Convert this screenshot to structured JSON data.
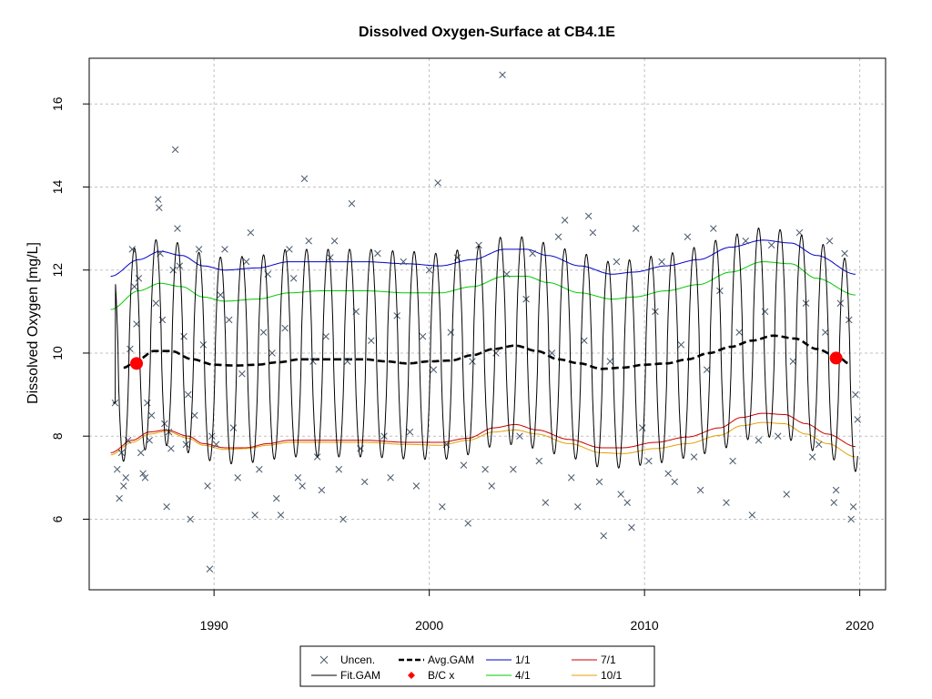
{
  "chart_data": {
    "type": "scatter",
    "title": "Dissolved Oxygen-Surface at CB4.1E",
    "xlabel": "",
    "ylabel": "Dissolved Oxygen [mg/L]",
    "xlim": [
      1984.2,
      2021.2
    ],
    "ylim": [
      4.3,
      17.1
    ],
    "xticks": [
      1990,
      2000,
      2010,
      2020
    ],
    "yticks": [
      6,
      8,
      10,
      12,
      14,
      16
    ],
    "grid": true,
    "legend_position": "bottom",
    "colors": {
      "points": "#4a5a6e",
      "fit_gam": "#000000",
      "avg_gam": "#000000",
      "bc": "#ff0000",
      "q1_1": "#0000cc",
      "q4_1": "#00cc00",
      "q7_1": "#cc0000",
      "q10_1": "#e69f00",
      "grid": "#c0c0c0"
    },
    "legend": [
      {
        "key": "uncen",
        "label": "Uncen."
      },
      {
        "key": "avg",
        "label": "Avg.GAM"
      },
      {
        "key": "q1",
        "label": "1/1"
      },
      {
        "key": "q7",
        "label": "7/1"
      },
      {
        "key": "fit",
        "label": "Fit.GAM"
      },
      {
        "key": "bc",
        "label": "B/C x"
      },
      {
        "key": "q4",
        "label": "4/1"
      },
      {
        "key": "q10",
        "label": "10/1"
      }
    ],
    "series": [
      {
        "key": "q1",
        "points": [
          [
            1985.2,
            11.85
          ],
          [
            1986.5,
            12.25
          ],
          [
            1987.5,
            12.45
          ],
          [
            1988.5,
            12.35
          ],
          [
            1989.5,
            12.1
          ],
          [
            1990.5,
            12.0
          ],
          [
            1992,
            12.05
          ],
          [
            1993.5,
            12.2
          ],
          [
            1995,
            12.2
          ],
          [
            1997,
            12.2
          ],
          [
            1999,
            12.15
          ],
          [
            2000.5,
            12.1
          ],
          [
            2002,
            12.25
          ],
          [
            2003.5,
            12.5
          ],
          [
            2004.5,
            12.5
          ],
          [
            2005.5,
            12.35
          ],
          [
            2007,
            12.1
          ],
          [
            2008.5,
            11.9
          ],
          [
            2009.5,
            11.95
          ],
          [
            2011,
            12.1
          ],
          [
            2012.5,
            12.25
          ],
          [
            2014,
            12.55
          ],
          [
            2015.5,
            12.72
          ],
          [
            2016.8,
            12.65
          ],
          [
            2018,
            12.35
          ],
          [
            2019.8,
            11.9
          ]
        ]
      },
      {
        "key": "q4",
        "points": [
          [
            1985.2,
            11.05
          ],
          [
            1986.5,
            11.5
          ],
          [
            1987.5,
            11.68
          ],
          [
            1988.5,
            11.6
          ],
          [
            1989.5,
            11.35
          ],
          [
            1990.5,
            11.25
          ],
          [
            1992,
            11.3
          ],
          [
            1993.5,
            11.45
          ],
          [
            1995,
            11.5
          ],
          [
            1997,
            11.5
          ],
          [
            1999,
            11.45
          ],
          [
            2000.5,
            11.45
          ],
          [
            2002,
            11.6
          ],
          [
            2003.5,
            11.85
          ],
          [
            2004.5,
            11.85
          ],
          [
            2005.5,
            11.7
          ],
          [
            2007,
            11.45
          ],
          [
            2008.5,
            11.3
          ],
          [
            2009.5,
            11.35
          ],
          [
            2011,
            11.5
          ],
          [
            2012.5,
            11.65
          ],
          [
            2014,
            11.95
          ],
          [
            2015.5,
            12.2
          ],
          [
            2016.8,
            12.15
          ],
          [
            2018,
            11.8
          ],
          [
            2019.8,
            11.4
          ]
        ]
      },
      {
        "key": "q7",
        "points": [
          [
            1985.2,
            7.6
          ],
          [
            1986.2,
            7.9
          ],
          [
            1987,
            8.1
          ],
          [
            1987.8,
            8.15
          ],
          [
            1988.8,
            8.0
          ],
          [
            1989.5,
            7.82
          ],
          [
            1990.5,
            7.72
          ],
          [
            1991.5,
            7.72
          ],
          [
            1992.5,
            7.82
          ],
          [
            1993.5,
            7.9
          ],
          [
            1995,
            7.9
          ],
          [
            1997,
            7.9
          ],
          [
            1999,
            7.85
          ],
          [
            2000.5,
            7.85
          ],
          [
            2001.8,
            7.95
          ],
          [
            2003,
            8.2
          ],
          [
            2004,
            8.28
          ],
          [
            2005,
            8.15
          ],
          [
            2006.5,
            7.92
          ],
          [
            2008,
            7.72
          ],
          [
            2009,
            7.72
          ],
          [
            2010.5,
            7.85
          ],
          [
            2012,
            7.98
          ],
          [
            2013.5,
            8.2
          ],
          [
            2014.5,
            8.45
          ],
          [
            2015.5,
            8.55
          ],
          [
            2016.5,
            8.52
          ],
          [
            2017.5,
            8.3
          ],
          [
            2018.5,
            8.05
          ],
          [
            2019.8,
            7.75
          ]
        ]
      },
      {
        "key": "q10",
        "points": [
          [
            1985.2,
            7.55
          ],
          [
            1986.2,
            7.85
          ],
          [
            1987,
            8.05
          ],
          [
            1987.8,
            8.12
          ],
          [
            1988.8,
            7.95
          ],
          [
            1989.5,
            7.78
          ],
          [
            1990.5,
            7.68
          ],
          [
            1991.5,
            7.7
          ],
          [
            1992.5,
            7.78
          ],
          [
            1993.5,
            7.85
          ],
          [
            1995,
            7.85
          ],
          [
            1997,
            7.85
          ],
          [
            1999,
            7.8
          ],
          [
            2000.5,
            7.78
          ],
          [
            2001.8,
            7.9
          ],
          [
            2003,
            8.1
          ],
          [
            2004,
            8.15
          ],
          [
            2005,
            8.05
          ],
          [
            2006.5,
            7.82
          ],
          [
            2008,
            7.6
          ],
          [
            2009,
            7.58
          ],
          [
            2010.5,
            7.7
          ],
          [
            2012,
            7.82
          ],
          [
            2013.5,
            8.02
          ],
          [
            2014.5,
            8.25
          ],
          [
            2015.5,
            8.33
          ],
          [
            2016.5,
            8.3
          ],
          [
            2017.5,
            8.05
          ],
          [
            2018.5,
            7.82
          ],
          [
            2019.8,
            7.5
          ]
        ]
      },
      {
        "key": "avg",
        "points": [
          [
            1985.8,
            9.65
          ],
          [
            1986.5,
            9.85
          ],
          [
            1987.2,
            10.05
          ],
          [
            1988,
            10.05
          ],
          [
            1989,
            9.85
          ],
          [
            1990,
            9.72
          ],
          [
            1991,
            9.7
          ],
          [
            1992,
            9.72
          ],
          [
            1993,
            9.78
          ],
          [
            1994,
            9.85
          ],
          [
            1995,
            9.85
          ],
          [
            1996,
            9.85
          ],
          [
            1997,
            9.85
          ],
          [
            1998,
            9.8
          ],
          [
            1999,
            9.75
          ],
          [
            2000,
            9.8
          ],
          [
            2001,
            9.82
          ],
          [
            2002,
            9.95
          ],
          [
            2003,
            10.1
          ],
          [
            2004,
            10.18
          ],
          [
            2005,
            10.05
          ],
          [
            2006,
            9.85
          ],
          [
            2007,
            9.75
          ],
          [
            2008,
            9.62
          ],
          [
            2009,
            9.65
          ],
          [
            2010,
            9.72
          ],
          [
            2011,
            9.75
          ],
          [
            2012,
            9.85
          ],
          [
            2013,
            10.0
          ],
          [
            2014,
            10.15
          ],
          [
            2015,
            10.3
          ],
          [
            2016,
            10.42
          ],
          [
            2017,
            10.35
          ],
          [
            2018,
            10.1
          ],
          [
            2019,
            9.9
          ],
          [
            2019.5,
            9.75
          ]
        ]
      }
    ],
    "bc_points": [
      [
        1986.4,
        9.75
      ],
      [
        2018.9,
        9.88
      ]
    ],
    "fit_gam": {
      "start": 1985.3,
      "end": 2019.9,
      "start_value": 8.8,
      "end_value": 8.1
    },
    "uncen_points": [
      [
        1985.4,
        8.8
      ],
      [
        1985.5,
        7.2
      ],
      [
        1985.6,
        6.5
      ],
      [
        1985.7,
        7.6
      ],
      [
        1985.8,
        6.8
      ],
      [
        1985.9,
        7.0
      ],
      [
        1986.0,
        7.9
      ],
      [
        1986.1,
        10.1
      ],
      [
        1986.2,
        12.5
      ],
      [
        1986.3,
        11.6
      ],
      [
        1986.4,
        10.7
      ],
      [
        1986.5,
        11.8
      ],
      [
        1986.6,
        7.6
      ],
      [
        1986.7,
        7.1
      ],
      [
        1986.8,
        7.0
      ],
      [
        1986.9,
        8.8
      ],
      [
        1987.0,
        7.9
      ],
      [
        1987.1,
        8.5
      ],
      [
        1987.3,
        11.2
      ],
      [
        1987.4,
        13.7
      ],
      [
        1987.45,
        13.5
      ],
      [
        1987.5,
        12.4
      ],
      [
        1987.6,
        10.8
      ],
      [
        1987.7,
        8.3
      ],
      [
        1987.8,
        6.3
      ],
      [
        1987.9,
        8.1
      ],
      [
        1988.0,
        7.7
      ],
      [
        1988.1,
        12.0
      ],
      [
        1988.2,
        14.9
      ],
      [
        1988.3,
        13.0
      ],
      [
        1988.4,
        12.1
      ],
      [
        1988.6,
        10.4
      ],
      [
        1988.7,
        7.8
      ],
      [
        1988.8,
        9.0
      ],
      [
        1988.9,
        6.0
      ],
      [
        1989.1,
        8.5
      ],
      [
        1989.3,
        12.5
      ],
      [
        1989.5,
        10.2
      ],
      [
        1989.7,
        6.8
      ],
      [
        1989.8,
        4.8
      ],
      [
        1989.9,
        8.0
      ],
      [
        1990.1,
        7.8
      ],
      [
        1990.3,
        11.4
      ],
      [
        1990.5,
        12.5
      ],
      [
        1990.7,
        10.8
      ],
      [
        1990.9,
        8.2
      ],
      [
        1991.1,
        7.0
      ],
      [
        1991.3,
        9.5
      ],
      [
        1991.5,
        12.2
      ],
      [
        1991.7,
        12.9
      ],
      [
        1991.9,
        6.1
      ],
      [
        1992.1,
        7.2
      ],
      [
        1992.3,
        10.5
      ],
      [
        1992.5,
        11.9
      ],
      [
        1992.7,
        10.0
      ],
      [
        1992.9,
        6.5
      ],
      [
        1993.1,
        6.1
      ],
      [
        1993.3,
        10.6
      ],
      [
        1993.5,
        12.5
      ],
      [
        1993.7,
        11.8
      ],
      [
        1993.9,
        7.0
      ],
      [
        1994.1,
        6.8
      ],
      [
        1994.2,
        14.2
      ],
      [
        1994.4,
        12.7
      ],
      [
        1994.6,
        9.8
      ],
      [
        1994.8,
        7.5
      ],
      [
        1995.0,
        6.7
      ],
      [
        1995.2,
        10.4
      ],
      [
        1995.4,
        12.3
      ],
      [
        1995.6,
        12.7
      ],
      [
        1995.8,
        7.2
      ],
      [
        1996.0,
        6.0
      ],
      [
        1996.2,
        9.8
      ],
      [
        1996.4,
        13.6
      ],
      [
        1996.6,
        11.0
      ],
      [
        1996.8,
        7.7
      ],
      [
        1997.0,
        6.9
      ],
      [
        1997.3,
        10.3
      ],
      [
        1997.6,
        12.4
      ],
      [
        1997.9,
        8.0
      ],
      [
        1998.2,
        7.0
      ],
      [
        1998.5,
        10.9
      ],
      [
        1998.8,
        12.2
      ],
      [
        1999.1,
        8.1
      ],
      [
        1999.4,
        6.8
      ],
      [
        1999.7,
        10.4
      ],
      [
        2000.0,
        12.0
      ],
      [
        2000.2,
        9.6
      ],
      [
        2000.4,
        14.1
      ],
      [
        2000.6,
        6.3
      ],
      [
        2000.8,
        7.8
      ],
      [
        2001.0,
        10.5
      ],
      [
        2001.3,
        12.3
      ],
      [
        2001.6,
        7.3
      ],
      [
        2001.8,
        5.9
      ],
      [
        2002.0,
        9.8
      ],
      [
        2002.3,
        12.6
      ],
      [
        2002.6,
        7.2
      ],
      [
        2002.9,
        6.8
      ],
      [
        2003.1,
        10.0
      ],
      [
        2003.4,
        16.7
      ],
      [
        2003.6,
        11.9
      ],
      [
        2003.9,
        7.2
      ],
      [
        2004.2,
        8.0
      ],
      [
        2004.5,
        11.3
      ],
      [
        2004.8,
        12.4
      ],
      [
        2005.1,
        7.4
      ],
      [
        2005.4,
        6.4
      ],
      [
        2005.7,
        10.0
      ],
      [
        2006.0,
        12.8
      ],
      [
        2006.3,
        13.2
      ],
      [
        2006.6,
        7.0
      ],
      [
        2006.9,
        6.3
      ],
      [
        2007.2,
        10.3
      ],
      [
        2007.4,
        13.3
      ],
      [
        2007.6,
        12.9
      ],
      [
        2007.9,
        6.9
      ],
      [
        2008.1,
        5.6
      ],
      [
        2008.4,
        9.8
      ],
      [
        2008.7,
        12.2
      ],
      [
        2008.9,
        6.6
      ],
      [
        2009.2,
        6.4
      ],
      [
        2009.4,
        5.8
      ],
      [
        2009.6,
        13.0
      ],
      [
        2009.9,
        8.2
      ],
      [
        2010.2,
        7.4
      ],
      [
        2010.5,
        11.0
      ],
      [
        2010.8,
        12.2
      ],
      [
        2011.1,
        7.1
      ],
      [
        2011.4,
        6.9
      ],
      [
        2011.7,
        10.2
      ],
      [
        2012.0,
        12.8
      ],
      [
        2012.3,
        7.5
      ],
      [
        2012.6,
        6.7
      ],
      [
        2012.9,
        9.6
      ],
      [
        2013.2,
        13.0
      ],
      [
        2013.5,
        11.5
      ],
      [
        2013.8,
        6.4
      ],
      [
        2014.1,
        7.4
      ],
      [
        2014.4,
        10.5
      ],
      [
        2014.7,
        12.7
      ],
      [
        2015.0,
        6.1
      ],
      [
        2015.3,
        7.9
      ],
      [
        2015.6,
        11.0
      ],
      [
        2015.9,
        12.6
      ],
      [
        2016.2,
        8.0
      ],
      [
        2016.6,
        6.6
      ],
      [
        2016.9,
        9.8
      ],
      [
        2017.2,
        12.9
      ],
      [
        2017.5,
        11.2
      ],
      [
        2017.8,
        7.5
      ],
      [
        2018.1,
        7.8
      ],
      [
        2018.4,
        10.5
      ],
      [
        2018.6,
        12.7
      ],
      [
        2018.8,
        6.4
      ],
      [
        2018.9,
        6.7
      ],
      [
        2019.1,
        11.2
      ],
      [
        2019.3,
        12.4
      ],
      [
        2019.5,
        10.8
      ],
      [
        2019.6,
        6.0
      ],
      [
        2019.7,
        6.3
      ],
      [
        2019.8,
        9.0
      ],
      [
        2019.9,
        8.4
      ]
    ]
  }
}
